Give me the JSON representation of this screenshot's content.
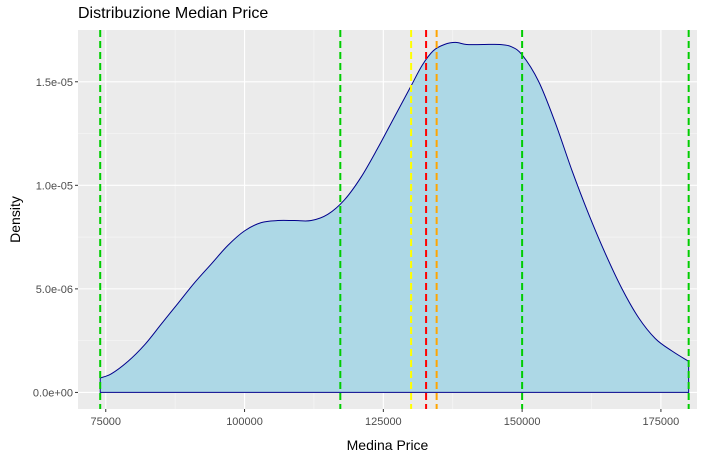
{
  "chart_data": {
    "type": "area",
    "title": "Distribuzione Median Price",
    "xlabel": "Medina Price",
    "ylabel": "Density",
    "xlim": [
      70000,
      181500
    ],
    "ylim": [
      -8e-07,
      1.75e-05
    ],
    "x_ticks": [
      75000,
      100000,
      125000,
      150000,
      175000
    ],
    "x_tick_labels": [
      "75000",
      "100000",
      "125000",
      "150000",
      "175000"
    ],
    "y_ticks": [
      0,
      5e-06,
      1e-05,
      1.5e-05
    ],
    "y_tick_labels": [
      "0.0e+00",
      "5.0e-06",
      "1.0e-05",
      "1.5e-05"
    ],
    "grid": true,
    "fill_color": "#add8e6",
    "line_color": "#00008b",
    "panel_background": "#ebebeb",
    "density_curve": {
      "x": [
        74000,
        76000,
        79000,
        82000,
        85000,
        88000,
        91000,
        94000,
        97000,
        100000,
        103000,
        106000,
        109000,
        112000,
        115000,
        118000,
        121000,
        124000,
        127000,
        130000,
        132000,
        134000,
        136000,
        138000,
        140000,
        143000,
        146000,
        148000,
        150000,
        153000,
        156000,
        159000,
        162000,
        165000,
        168000,
        171000,
        174000,
        177000,
        180000
      ],
      "y": [
        7e-07,
        9e-07,
        1.5e-06,
        2.3e-06,
        3.3e-06,
        4.3e-06,
        5.3e-06,
        6.2e-06,
        7.1e-06,
        7.8e-06,
        8.2e-06,
        8.3e-06,
        8.3e-06,
        8.3e-06,
        8.6e-06,
        9.3e-06,
        1.04e-05,
        1.18e-05,
        1.33e-05,
        1.48e-05,
        1.58e-05,
        1.65e-05,
        1.68e-05,
        1.69e-05,
        1.68e-05,
        1.68e-05,
        1.68e-05,
        1.67e-05,
        1.63e-05,
        1.5e-05,
        1.3e-05,
        1.07e-05,
        8.6e-06,
        6.7e-06,
        5e-06,
        3.6e-06,
        2.6e-06,
        2e-06,
        1.5e-06
      ]
    },
    "vlines": [
      {
        "x": 74000,
        "color": "#00cd00"
      },
      {
        "x": 117250,
        "color": "#00cd00"
      },
      {
        "x": 150000,
        "color": "#00cd00"
      },
      {
        "x": 180000,
        "color": "#00cd00"
      },
      {
        "x": 130000,
        "color": "#ffff00"
      },
      {
        "x": 132700,
        "color": "#ff0000"
      },
      {
        "x": 134600,
        "color": "#ffa500"
      }
    ]
  }
}
